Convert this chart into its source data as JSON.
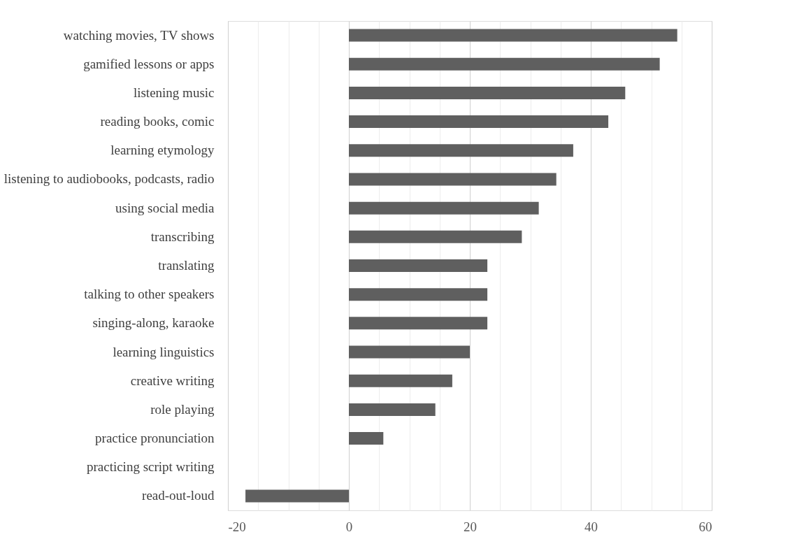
{
  "chart_data": {
    "type": "bar",
    "orientation": "horizontal",
    "categories": [
      "watching movies, TV shows",
      "gamified lessons or apps",
      "listening music",
      "reading books, comic",
      "learning etymology",
      "listening to audiobooks, podcasts, radio",
      "using social media",
      "transcribing",
      "translating",
      "talking to other speakers",
      "singing-along, karaoke",
      "learning linguistics",
      "creative writing",
      "role playing",
      "practice pronunciation",
      "practicing script writing",
      "read-out-loud"
    ],
    "values": [
      54.3,
      51.4,
      45.7,
      42.9,
      37.1,
      34.3,
      31.4,
      28.6,
      22.9,
      22.9,
      22.9,
      20.0,
      17.1,
      14.3,
      5.7,
      0,
      -17.1
    ],
    "color": "#5f5f5f",
    "xlim": [
      -20,
      60
    ],
    "xticks": [
      -20,
      {
        "value": -15,
        "label": null
      },
      {
        "value": -10,
        "label": null
      },
      {
        "value": -5,
        "label": null
      },
      0,
      {
        "value": 5,
        "label": null
      },
      {
        "value": 10,
        "label": null
      },
      {
        "value": 15,
        "label": null
      },
      20,
      {
        "value": 25,
        "label": null
      },
      {
        "value": 30,
        "label": null
      },
      {
        "value": 35,
        "label": null
      },
      40,
      {
        "value": 45,
        "label": null
      },
      {
        "value": 50,
        "label": null
      },
      {
        "value": 55,
        "label": null
      },
      60
    ],
    "grid": "x"
  }
}
